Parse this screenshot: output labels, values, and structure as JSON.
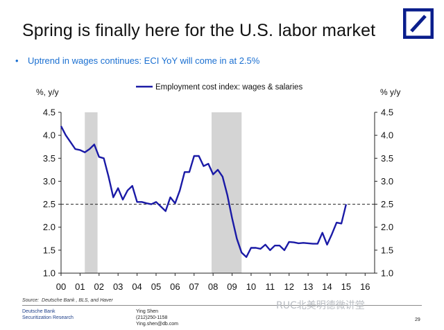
{
  "title": "Spring is finally here for the U.S. labor market",
  "bullet": "Uptrend in wages continues: ECI YoY will come in at 2.5%",
  "colors": {
    "series": "#1a1aa6",
    "bullet": "#1a6fd1",
    "brand": "#0a1e8c",
    "recession": "#d4d4d4"
  },
  "chart_data": {
    "type": "line",
    "legend_position": "top-center",
    "ylabel_left": "%, y/y",
    "ylabel_right": "% y/y",
    "ylim": [
      1.0,
      4.5
    ],
    "yticks": [
      "1.0",
      "1.5",
      "2.0",
      "2.5",
      "3.0",
      "3.5",
      "4.0",
      "4.5"
    ],
    "xlim": [
      2000,
      2016.5
    ],
    "xticks": [
      "00",
      "01",
      "02",
      "03",
      "04",
      "05",
      "06",
      "07",
      "08",
      "09",
      "10",
      "11",
      "12",
      "13",
      "14",
      "15",
      "16"
    ],
    "reference_line": 2.5,
    "recession_bands": [
      [
        2001.25,
        2001.92
      ],
      [
        2007.92,
        2009.5
      ]
    ],
    "series": [
      {
        "name": "Employment cost index: wages & salaries",
        "x": [
          2000.0,
          2000.25,
          2000.5,
          2000.75,
          2001.0,
          2001.25,
          2001.5,
          2001.75,
          2002.0,
          2002.25,
          2002.5,
          2002.75,
          2003.0,
          2003.25,
          2003.5,
          2003.75,
          2004.0,
          2004.25,
          2004.5,
          2004.75,
          2005.0,
          2005.25,
          2005.5,
          2005.75,
          2006.0,
          2006.25,
          2006.5,
          2006.75,
          2007.0,
          2007.25,
          2007.5,
          2007.75,
          2008.0,
          2008.25,
          2008.5,
          2008.75,
          2009.0,
          2009.25,
          2009.5,
          2009.75,
          2010.0,
          2010.25,
          2010.5,
          2010.75,
          2011.0,
          2011.25,
          2011.5,
          2011.75,
          2012.0,
          2012.25,
          2012.5,
          2012.75,
          2013.0,
          2013.25,
          2013.5,
          2013.75,
          2014.0,
          2014.25,
          2014.5,
          2014.75,
          2015.0
        ],
        "y": [
          4.2,
          4.0,
          3.85,
          3.7,
          3.68,
          3.63,
          3.7,
          3.8,
          3.53,
          3.5,
          3.1,
          2.65,
          2.85,
          2.6,
          2.8,
          2.9,
          2.55,
          2.55,
          2.52,
          2.5,
          2.55,
          2.45,
          2.35,
          2.65,
          2.52,
          2.8,
          3.2,
          3.2,
          3.55,
          3.55,
          3.33,
          3.38,
          3.15,
          3.25,
          3.1,
          2.7,
          2.2,
          1.75,
          1.45,
          1.35,
          1.55,
          1.55,
          1.53,
          1.62,
          1.5,
          1.6,
          1.6,
          1.5,
          1.68,
          1.67,
          1.65,
          1.66,
          1.65,
          1.64,
          1.64,
          1.88,
          1.62,
          1.85,
          2.1,
          2.08,
          2.5
        ]
      }
    ],
    "source": "Deutsche Bank , BLS, and Haver"
  },
  "footer": {
    "source_label": "Source:",
    "source_text": "Deutsche Bank , BLS, and Haver",
    "company_line1": "Deutsche Bank",
    "company_line2": "Securitization Research",
    "contact_name": "Ying Shen",
    "contact_phone": "(212)250-1158",
    "contact_email": "Ying.shen@db.com",
    "watermark": "RUC北美明德微讲堂",
    "page": "29"
  }
}
